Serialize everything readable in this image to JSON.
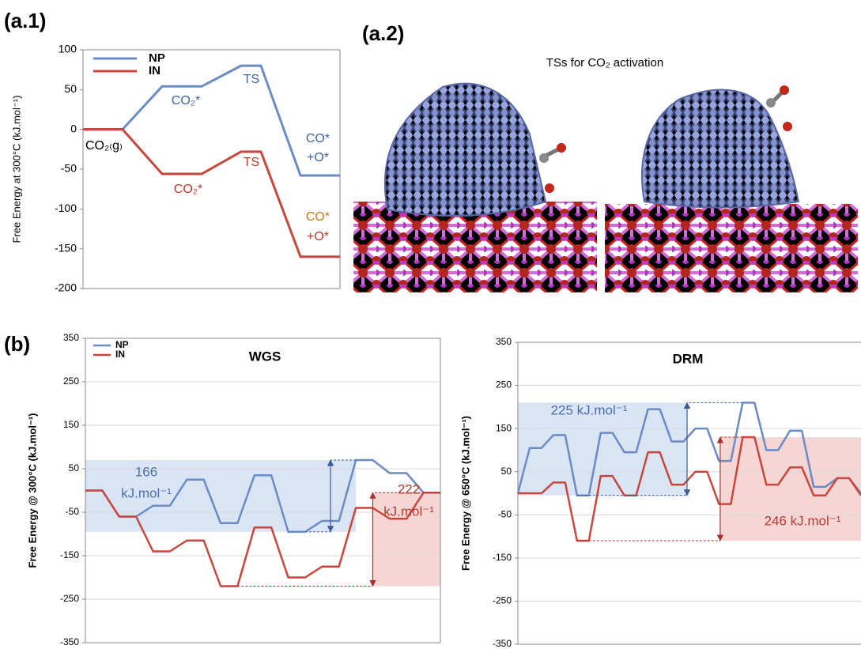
{
  "panels": {
    "a1": "(a.1)",
    "a2": "(a.2)",
    "b": "(b)"
  },
  "image_caption": "TSs for CO₂ activation",
  "chart_data": [
    {
      "type": "line",
      "y_label": "Free Energy at 300°C (kJ.mol⁻¹)",
      "x": [
        0,
        2,
        4,
        6,
        8,
        9,
        11,
        13
      ],
      "xlim": [
        0,
        13
      ],
      "ylim": [
        -200,
        100
      ],
      "yticks": [
        -200,
        -150,
        -100,
        -50,
        0,
        50,
        100
      ],
      "grid": false,
      "legend": "top-left",
      "series": [
        {
          "name": "NP",
          "color": "#6a8bc3",
          "values": [
            0,
            0,
            54,
            54,
            80,
            80,
            -58,
            -58
          ]
        },
        {
          "name": "IN",
          "color": "#c9463d",
          "values": [
            0,
            0,
            -56,
            -56,
            -28,
            -28,
            -160,
            -160
          ]
        }
      ],
      "annotations": [
        {
          "text": "CO₂₍g₎",
          "color": "#000000"
        },
        {
          "text": "CO₂*",
          "color": "#3f63a3"
        },
        {
          "text": "TS",
          "color": "#3f63a3"
        },
        {
          "text": "CO*",
          "color": "#3f63a3"
        },
        {
          "text": "+O*",
          "color": "#3f63a3"
        },
        {
          "text": "CO₂*",
          "color": "#c0392b"
        },
        {
          "text": "TS",
          "color": "#c0392b"
        },
        {
          "text": "CO*",
          "color": "#c87a1e"
        },
        {
          "text": "+O*",
          "color": "#c0392b"
        }
      ]
    },
    {
      "type": "line",
      "title": "WGS",
      "y_label": "Free Energy @ 300°C  (kJ.mol⁻¹)",
      "x": [
        0,
        1,
        2,
        3,
        4,
        5,
        6,
        7,
        8,
        9,
        10,
        11,
        12,
        13,
        14,
        15,
        16,
        17,
        18,
        19,
        20,
        21
      ],
      "xlim": [
        0,
        21
      ],
      "ylim": [
        -350,
        350
      ],
      "yticks": [
        -350,
        -250,
        -150,
        -50,
        50,
        150,
        250,
        350
      ],
      "grid": true,
      "legend": "top-left",
      "series": [
        {
          "name": "NP",
          "color": "#6a8bc3",
          "values": [
            0,
            0,
            -60,
            -60,
            -35,
            -35,
            25,
            25,
            -75,
            -75,
            35,
            35,
            -95,
            -95,
            -70,
            -70,
            70,
            70,
            40,
            40,
            -5,
            -5
          ]
        },
        {
          "name": "IN",
          "color": "#c9463d",
          "values": [
            0,
            0,
            -60,
            -60,
            -140,
            -140,
            -115,
            -115,
            -220,
            -220,
            -85,
            -85,
            -200,
            -200,
            -175,
            -175,
            -40,
            -40,
            -65,
            -65,
            -5,
            -5
          ]
        }
      ],
      "annotations": [
        {
          "text": [
            "166",
            "kJ.mol⁻¹"
          ],
          "color": "#4a6fae"
        },
        {
          "text": [
            "222",
            "kJ.mol⁻¹"
          ],
          "color": "#b83a30"
        }
      ]
    },
    {
      "type": "line",
      "title": "DRM",
      "y_label": "Free Energy @ 650°C  (kJ.mol⁻¹)",
      "x": [
        0,
        1,
        2,
        3,
        4,
        5,
        6,
        7,
        8,
        9,
        10,
        11,
        12,
        13,
        14,
        15,
        16,
        17,
        18,
        19,
        20,
        21,
        22,
        23,
        24,
        25,
        26,
        27,
        28,
        29
      ],
      "xlim": [
        0,
        29
      ],
      "ylim": [
        -350,
        350
      ],
      "yticks": [
        -350,
        -250,
        -150,
        -50,
        50,
        150,
        250,
        350
      ],
      "grid": true,
      "series": [
        {
          "color": "#6a8bc3",
          "values": [
            0,
            105,
            105,
            135,
            135,
            -5,
            -5,
            140,
            140,
            95,
            95,
            195,
            195,
            120,
            120,
            150,
            150,
            75,
            75,
            210,
            210,
            100,
            100,
            145,
            145,
            15,
            15,
            35,
            35,
            0
          ]
        },
        {
          "color": "#c9463d",
          "values": [
            0,
            0,
            0,
            25,
            25,
            -110,
            -110,
            40,
            40,
            -5,
            -5,
            95,
            95,
            20,
            20,
            50,
            50,
            -25,
            -25,
            130,
            130,
            20,
            20,
            60,
            60,
            -5,
            -5,
            35,
            35,
            -5
          ]
        }
      ],
      "annotations": [
        {
          "text": [
            "225 kJ.mol⁻¹"
          ],
          "color": "#4a6fae"
        },
        {
          "text": [
            "246 kJ.mol⁻¹"
          ],
          "color": "#b83a30"
        }
      ]
    }
  ]
}
